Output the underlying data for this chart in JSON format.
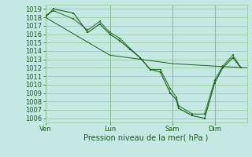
{
  "bg_color": "#c5e8e5",
  "grid_color": "#90c890",
  "line_color_dark": "#1a5c1a",
  "line_color_med": "#2d7a2d",
  "xlabel": "Pression niveau de la mer( hPa )",
  "ylim": [
    1005.5,
    1019.5
  ],
  "yticks": [
    1006,
    1007,
    1008,
    1009,
    1010,
    1011,
    1012,
    1013,
    1014,
    1015,
    1016,
    1017,
    1018,
    1019
  ],
  "xtick_labels": [
    "Ven",
    "Lun",
    "Sam",
    "Dim"
  ],
  "xtick_positions": [
    0.0,
    0.32,
    0.63,
    0.84
  ],
  "vline_positions": [
    0.0,
    0.32,
    0.63,
    0.84
  ],
  "xlim": [
    0.0,
    1.0
  ],
  "series1_x": [
    0.0,
    0.04,
    0.14,
    0.21,
    0.27,
    0.32,
    0.37,
    0.42,
    0.47,
    0.52,
    0.57,
    0.62,
    0.65,
    0.66,
    0.73,
    0.79,
    0.84,
    0.88,
    0.93,
    0.97
  ],
  "series1_y": [
    1018.0,
    1019.0,
    1018.5,
    1016.2,
    1017.2,
    1016.0,
    1015.2,
    1014.2,
    1013.2,
    1011.8,
    1011.5,
    1009.0,
    1008.2,
    1007.2,
    1006.3,
    1006.0,
    1010.2,
    1012.0,
    1013.2,
    1012.0
  ],
  "series2_x": [
    0.0,
    0.04,
    0.14,
    0.21,
    0.27,
    0.32,
    0.37,
    0.42,
    0.47,
    0.52,
    0.57,
    0.62,
    0.65,
    0.66,
    0.73,
    0.79,
    0.84,
    0.88,
    0.93,
    0.97
  ],
  "series2_y": [
    1018.2,
    1018.8,
    1017.8,
    1016.5,
    1017.5,
    1016.2,
    1015.5,
    1014.3,
    1013.2,
    1011.8,
    1011.8,
    1009.5,
    1008.5,
    1007.5,
    1006.5,
    1006.5,
    1010.5,
    1012.2,
    1013.5,
    1012.0
  ],
  "series3_x": [
    0.0,
    0.32,
    0.63,
    0.84,
    1.0
  ],
  "series3_y": [
    1018.0,
    1013.5,
    1012.5,
    1012.2,
    1012.0
  ],
  "ylabel_fontsize": 6,
  "xlabel_fontsize": 7,
  "tick_fontsize": 6
}
